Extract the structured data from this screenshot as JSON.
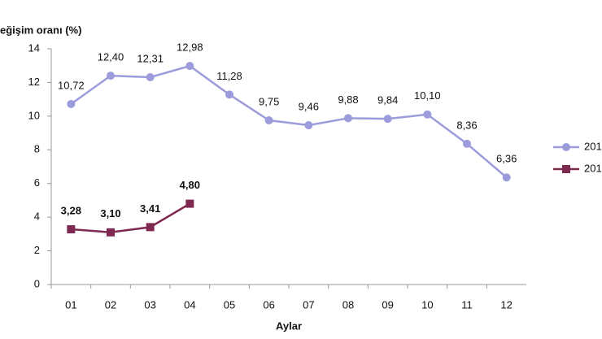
{
  "chart_data": {
    "type": "line",
    "title": "eğişim oranı (%)",
    "x_label": "Aylar",
    "categories": [
      "01",
      "02",
      "03",
      "04",
      "05",
      "06",
      "07",
      "08",
      "09",
      "10",
      "11",
      "12"
    ],
    "series": [
      {
        "name": "201",
        "color": "#9c9cdc",
        "marker": "circle",
        "values": [
          10.72,
          12.4,
          12.31,
          12.98,
          11.28,
          9.75,
          9.46,
          9.88,
          9.84,
          10.1,
          8.36,
          6.36
        ],
        "value_labels": [
          "10,72",
          "12,40",
          "12,31",
          "12,98",
          "11,28",
          "9,75",
          "9,46",
          "9,88",
          "9,84",
          "10,10",
          "8,36",
          "6,36"
        ]
      },
      {
        "name": "201",
        "color": "#7e2a50",
        "marker": "square",
        "values": [
          3.28,
          3.1,
          3.41,
          4.8,
          null,
          null,
          null,
          null,
          null,
          null,
          null,
          null
        ],
        "value_labels": [
          "3,28",
          "3,10",
          "3,41",
          "4,80",
          null,
          null,
          null,
          null,
          null,
          null,
          null,
          null
        ]
      }
    ],
    "ylim": [
      0,
      14
    ],
    "yticks": [
      0,
      2,
      4,
      6,
      8,
      10,
      12,
      14
    ],
    "grid": false,
    "legend": "right"
  }
}
